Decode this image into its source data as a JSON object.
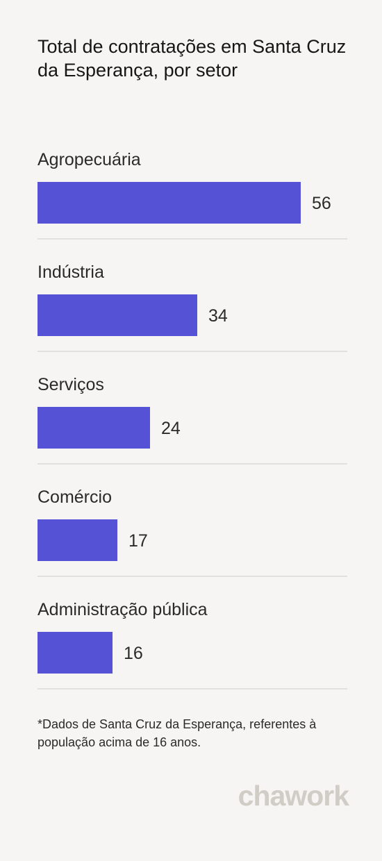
{
  "title": "Total de contratações em Santa Cruz da Esperança, por setor",
  "footnote": "*Dados de Santa Cruz da Esperança, referentes à população acima de 16 anos.",
  "logo_text": "chawork",
  "colors": {
    "bar": "#5652d6",
    "divider": "#e2e0dc",
    "logo": "#cfcdc6"
  },
  "chart_data": {
    "type": "bar",
    "orientation": "horizontal",
    "categories": [
      "Agropecuária",
      "Indústria",
      "Serviços",
      "Comércio",
      "Administração pública"
    ],
    "values": [
      56,
      34,
      24,
      17,
      16
    ],
    "xlim": [
      0,
      56
    ],
    "grid": false,
    "legend": "none"
  }
}
